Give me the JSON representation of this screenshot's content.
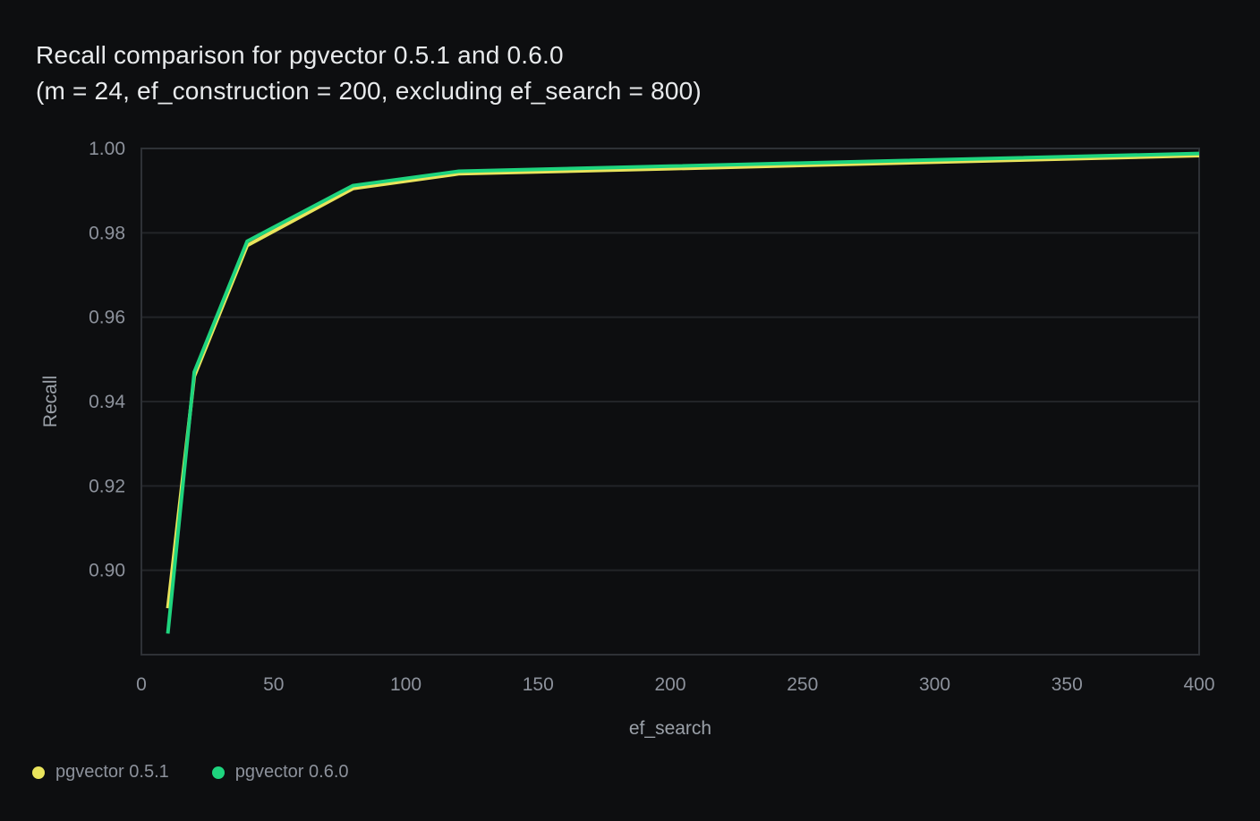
{
  "chart_data": {
    "type": "line",
    "title_line1": "Recall comparison for pgvector 0.5.1 and 0.6.0",
    "title_line2": "(m = 24, ef_construction = 200, excluding ef_search = 800)",
    "xlabel": "ef_search",
    "ylabel": "Recall",
    "x": [
      10,
      20,
      40,
      80,
      120,
      200,
      400
    ],
    "series": [
      {
        "name": "pgvector 0.5.1",
        "color": "#e9e45c",
        "values": [
          0.891,
          0.946,
          0.977,
          0.9905,
          0.994,
          0.9952,
          0.9983
        ]
      },
      {
        "name": "pgvector 0.6.0",
        "color": "#1ed47e",
        "values": [
          0.885,
          0.947,
          0.978,
          0.9912,
          0.9946,
          0.9958,
          0.9988
        ]
      }
    ],
    "xlim": [
      0,
      400
    ],
    "ylim": [
      0.88,
      1.0
    ],
    "xticks": [
      0,
      50,
      100,
      150,
      200,
      250,
      300,
      350,
      400
    ],
    "yticks": [
      0.9,
      0.92,
      0.94,
      0.96,
      0.98,
      1.0
    ],
    "grid": "horizontal-only",
    "legend_position": "bottom-left",
    "colors": {
      "background": "#0d0e10",
      "grid": "#222428",
      "frame": "#2e3136",
      "tick_text": "#8d929c",
      "axis_label_text": "#9aa0a8",
      "title_text": "#e8eaec"
    }
  }
}
